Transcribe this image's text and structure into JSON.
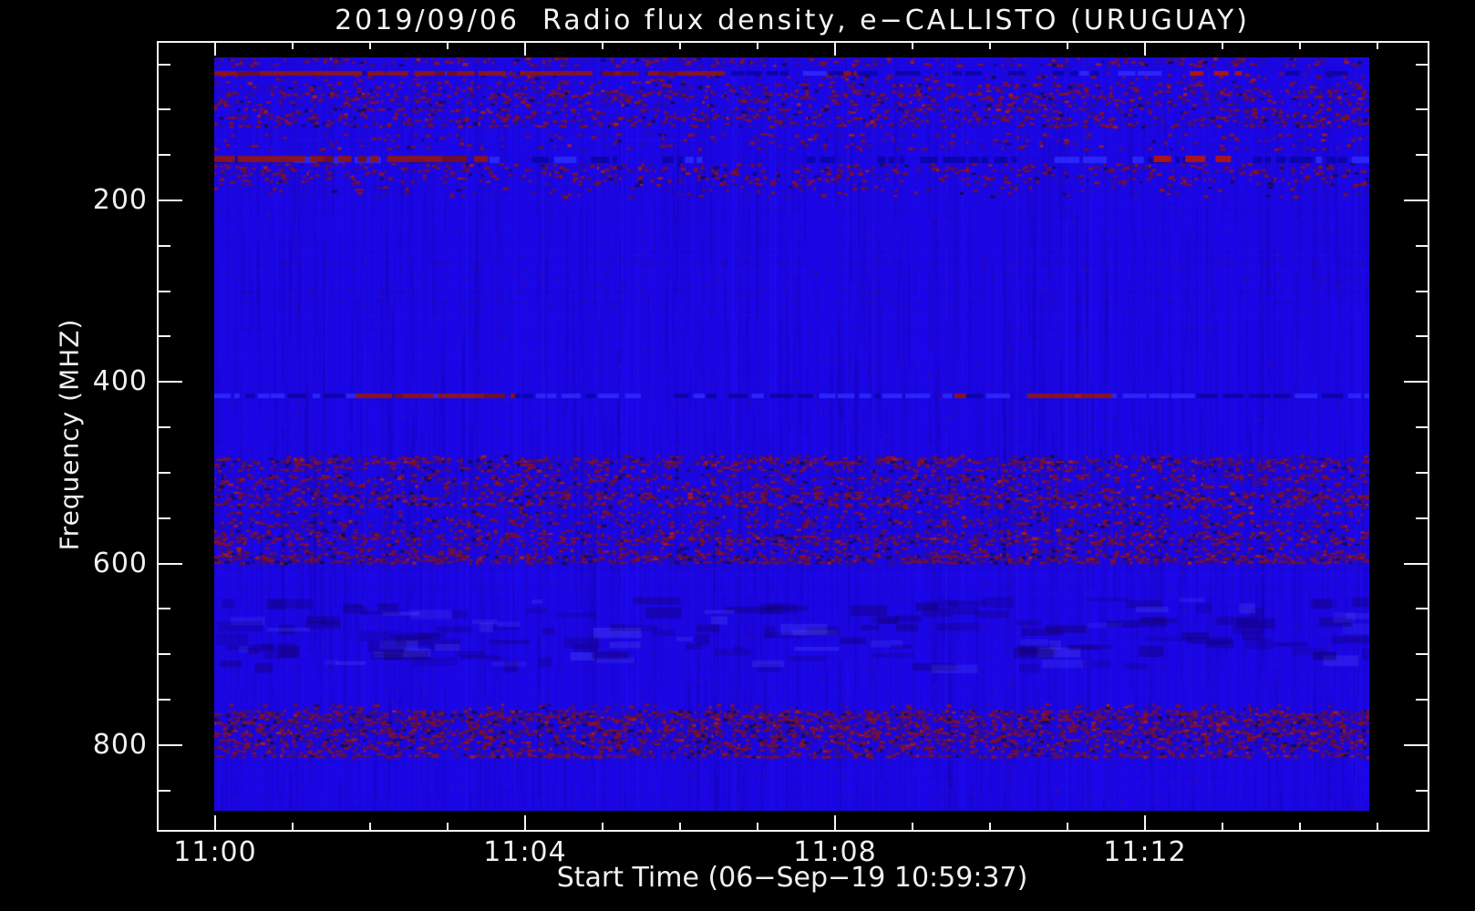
{
  "chart_data": {
    "type": "heatmap",
    "title": "2019/09/06  Radio flux density, e−CALLISTO (URUGUAY)",
    "x_axis": {
      "label": "Start Time (06−Sep−19 10:59:37)",
      "major_ticks": [
        {
          "minutes": 0,
          "label": "11:00"
        },
        {
          "minutes": 4,
          "label": "11:04"
        },
        {
          "minutes": 8,
          "label": "11:08"
        },
        {
          "minutes": 12,
          "label": "11:12"
        }
      ],
      "minor_tick_minutes": [
        1,
        2,
        3,
        5,
        6,
        7,
        9,
        10,
        11,
        13,
        14,
        15
      ]
    },
    "y_axis": {
      "label": "Frequency (MHZ)",
      "direction": "increasing-downward",
      "major_ticks": [
        {
          "mhz": 200,
          "label": "200"
        },
        {
          "mhz": 400,
          "label": "400"
        },
        {
          "mhz": 600,
          "label": "600"
        },
        {
          "mhz": 800,
          "label": "800"
        }
      ],
      "minor_tick_mhz": [
        50,
        100,
        150,
        250,
        300,
        350,
        450,
        500,
        550,
        650,
        700,
        750,
        850
      ]
    },
    "image": {
      "time_range_minutes": [
        0,
        14.9
      ],
      "freq_range_mhz": [
        43,
        877
      ],
      "description": "mostly uniform blue flux with horizontal RFI bands of dark red/purple speckle"
    },
    "colors": {
      "background": "#000000",
      "axis": "#f5f5f5",
      "base_blue": "#1c08ee",
      "rfi_dark_red": "#8c1518",
      "rfi_bright_red": "#b2170c",
      "rfi_purple": "#55104e",
      "rfi_violet": "#2f0f86",
      "bright_blue": "#2d2dff",
      "dark_blue": "#0a05a2"
    },
    "bands": [
      {
        "f0": 43,
        "f1": 52,
        "density": 0.3
      },
      {
        "f0": 60,
        "f1": 76,
        "density": 0.2
      },
      {
        "f0": 79,
        "f1": 96,
        "density": 0.28
      },
      {
        "f0": 99,
        "f1": 118,
        "density": 0.33
      },
      {
        "f0": 127,
        "f1": 144,
        "density": 0.14
      },
      {
        "f0": 160,
        "f1": 182,
        "density": 0.2
      },
      {
        "f0": 185,
        "f1": 196,
        "density": 0.1
      },
      {
        "f0": 262,
        "f1": 322,
        "density": 0.05,
        "style": "faint"
      },
      {
        "f0": 481,
        "f1": 499,
        "density": 0.4
      },
      {
        "f0": 502,
        "f1": 518,
        "density": 0.38
      },
      {
        "f0": 521,
        "f1": 538,
        "density": 0.42
      },
      {
        "f0": 542,
        "f1": 558,
        "density": 0.28
      },
      {
        "f0": 562,
        "f1": 578,
        "density": 0.38
      },
      {
        "f0": 582,
        "f1": 600,
        "density": 0.48
      },
      {
        "f0": 637,
        "f1": 712,
        "density": 0.12,
        "style": "mottle"
      },
      {
        "f0": 755,
        "f1": 760,
        "density": 0.15
      },
      {
        "f0": 762,
        "f1": 790,
        "density": 0.52
      },
      {
        "f0": 793,
        "f1": 813,
        "density": 0.38
      }
    ],
    "lines": [
      {
        "f": 57,
        "height": 5,
        "base": "blue_dashes",
        "segments": [
          {
            "t0": -0.01,
            "t1": 3.82,
            "color": "maroon"
          },
          {
            "t0": 3.93,
            "t1": 4.87,
            "color": "maroon"
          },
          {
            "t0": 4.99,
            "t1": 5.46,
            "color": "maroon"
          },
          {
            "t0": 5.58,
            "t1": 6.58,
            "color": "maroon"
          },
          {
            "t0": 8.11,
            "t1": 8.28,
            "color": "maroon"
          },
          {
            "t0": 12.58,
            "t1": 12.75,
            "color": "red"
          },
          {
            "t0": 12.89,
            "t1": 13.08,
            "color": "red"
          },
          {
            "t0": 13.16,
            "t1": 13.25,
            "color": "red"
          }
        ]
      },
      {
        "f": 152,
        "height": 7,
        "base": "blue_dashes",
        "segments": [
          {
            "t0": -0.01,
            "t1": 1.16,
            "color": "maroon"
          },
          {
            "t0": 1.22,
            "t1": 2.11,
            "color": "maroon"
          },
          {
            "t0": 2.22,
            "t1": 3.25,
            "color": "maroon"
          },
          {
            "t0": 3.34,
            "t1": 3.52,
            "color": "maroon"
          },
          {
            "t0": 12.11,
            "t1": 12.34,
            "color": "red"
          },
          {
            "t0": 12.52,
            "t1": 12.78,
            "color": "red"
          },
          {
            "t0": 12.91,
            "t1": 13.11,
            "color": "red"
          }
        ]
      },
      {
        "f": 413,
        "height": 5,
        "base": "blue_dashes_bright",
        "segments": [
          {
            "t0": 1.81,
            "t1": 3.87,
            "color": "maroon"
          },
          {
            "t0": 9.54,
            "t1": 9.69,
            "color": "maroon"
          },
          {
            "t0": 10.48,
            "t1": 11.58,
            "color": "maroon_bright"
          }
        ]
      }
    ]
  }
}
